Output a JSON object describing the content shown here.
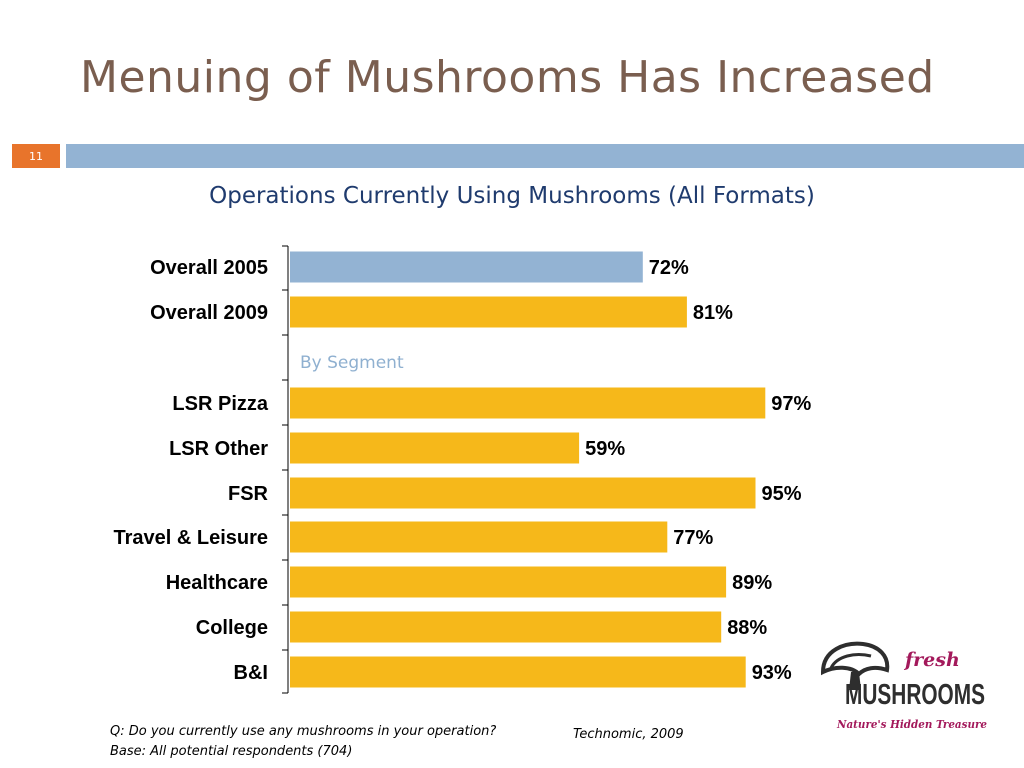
{
  "slide": {
    "title": "Menuing of Mushrooms Has Increased",
    "number": "11",
    "accent_color": "#e8742b",
    "bar_color": "#93b3d3",
    "title_color": "#7a5e4f"
  },
  "chart_data": {
    "type": "bar",
    "orientation": "horizontal",
    "title": "Operations Currently Using Mushrooms (All Formats)",
    "xlim": [
      0,
      100
    ],
    "value_suffix": "%",
    "categories": [
      "Overall 2005",
      "Overall 2009",
      "LSR Pizza",
      "LSR Other",
      "FSR",
      "Travel & Leisure",
      "Healthcare",
      "College",
      "B&I"
    ],
    "values": [
      72,
      81,
      97,
      59,
      95,
      77,
      89,
      88,
      93
    ],
    "value_labels": [
      "72%",
      "81%",
      "97%",
      "59%",
      "95%",
      "77%",
      "89%",
      "88%",
      "93%"
    ],
    "colors": [
      "#93b3d3",
      "#f6b81a",
      "#f6b81a",
      "#f6b81a",
      "#f6b81a",
      "#f6b81a",
      "#f6b81a",
      "#f6b81a",
      "#f6b81a"
    ],
    "group_label": "By Segment",
    "group_label_color": "#8fb0d0",
    "grid": false
  },
  "footnote": {
    "question": "Q: Do you currently use any mushrooms in your operation?",
    "base": "Base: All potential respondents (704)"
  },
  "source": "Technomic, 2009",
  "logo": {
    "fresh": "fresh",
    "brand": "MUSHROOMS",
    "tagline": "Nature's Hidden Treasure",
    "icon": "mushroom-icon"
  }
}
